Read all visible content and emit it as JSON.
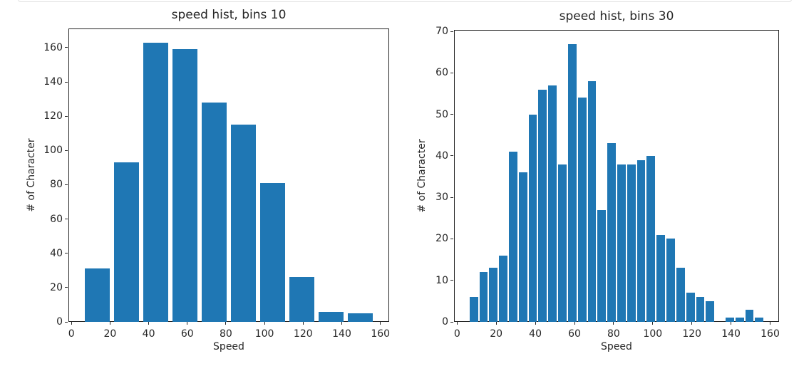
{
  "figure": {
    "background": "#ffffff",
    "divider_color": "#e0e0e0",
    "text_color": "#262626",
    "axis_color": "#262626"
  },
  "chart_data": [
    {
      "type": "bar",
      "chart_kind": "histogram",
      "title": "speed hist, bins 10",
      "xlabel": "Speed",
      "ylabel": "# of Character",
      "bar_color": "#1f77b4",
      "bins": 10,
      "bin_start": 6,
      "bin_end": 157,
      "values": [
        31,
        93,
        163,
        159,
        128,
        115,
        81,
        26,
        6,
        5
      ],
      "xticks": [
        0,
        20,
        40,
        60,
        80,
        100,
        120,
        140,
        160
      ],
      "yticks": [
        0,
        20,
        40,
        60,
        80,
        100,
        120,
        140,
        160
      ],
      "xlim": [
        -1.55,
        164.55
      ],
      "ylim": [
        0,
        171.15
      ],
      "grid": false,
      "legend": null
    },
    {
      "type": "bar",
      "chart_kind": "histogram",
      "title": "speed hist, bins 30",
      "xlabel": "Speed",
      "ylabel": "# of Character",
      "bar_color": "#1f77b4",
      "bins": 30,
      "bin_start": 6,
      "bin_end": 157,
      "values": [
        6,
        12,
        13,
        16,
        41,
        36,
        50,
        56,
        57,
        38,
        67,
        54,
        58,
        27,
        43,
        38,
        38,
        39,
        40,
        21,
        20,
        13,
        7,
        6,
        5,
        0,
        1,
        1,
        3,
        1
      ],
      "xticks": [
        0,
        20,
        40,
        60,
        80,
        100,
        120,
        140,
        160
      ],
      "yticks": [
        0,
        10,
        20,
        30,
        40,
        50,
        60,
        70
      ],
      "xlim": [
        -1.55,
        164.55
      ],
      "ylim": [
        0,
        70.35
      ],
      "grid": false,
      "legend": null
    }
  ]
}
